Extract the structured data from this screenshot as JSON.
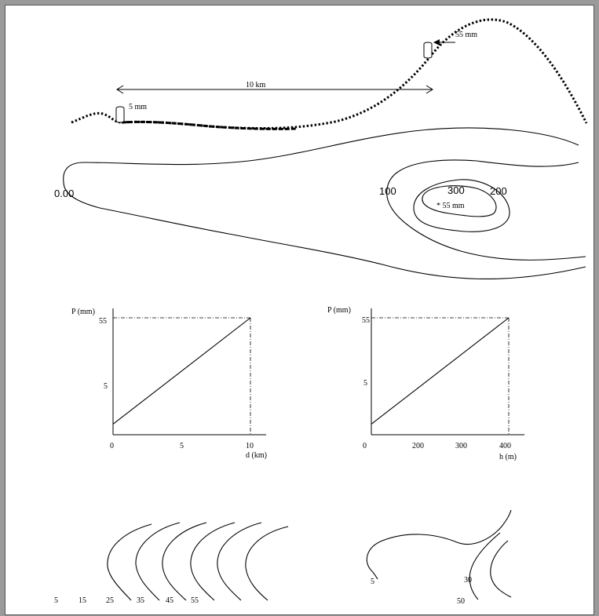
{
  "terrain": {
    "distance_label": "10 km",
    "low_gauge_label": "5 mm",
    "high_gauge_label": "55 mm"
  },
  "contour_map": {
    "labels": [
      "0.00",
      "100",
      "300",
      "200"
    ],
    "peak_label": "* 55 mm"
  },
  "graph_distance": {
    "y_label": "P (mm)",
    "x_label": "d (km)",
    "y_ticks": [
      "55",
      "5"
    ],
    "x_ticks": [
      "0",
      "5",
      "10"
    ],
    "line": {
      "x": [
        0,
        10
      ],
      "y": [
        5,
        55
      ]
    }
  },
  "graph_height": {
    "y_label": "P (mm)",
    "x_label": "h  (m)",
    "y_ticks": [
      "55",
      "5"
    ],
    "x_ticks": [
      "0",
      "200",
      "300",
      "400"
    ],
    "line": {
      "x": [
        0,
        400
      ],
      "y": [
        5,
        55
      ]
    }
  },
  "isohyets_left": {
    "labels": [
      "5",
      "15",
      "25",
      "35",
      "45",
      "55"
    ]
  },
  "isohyets_right": {
    "labels": [
      "5",
      "30",
      "50"
    ]
  },
  "colors": {
    "ink": "#000000",
    "paper": "#ffffff",
    "frame": "#9a9a9a"
  }
}
